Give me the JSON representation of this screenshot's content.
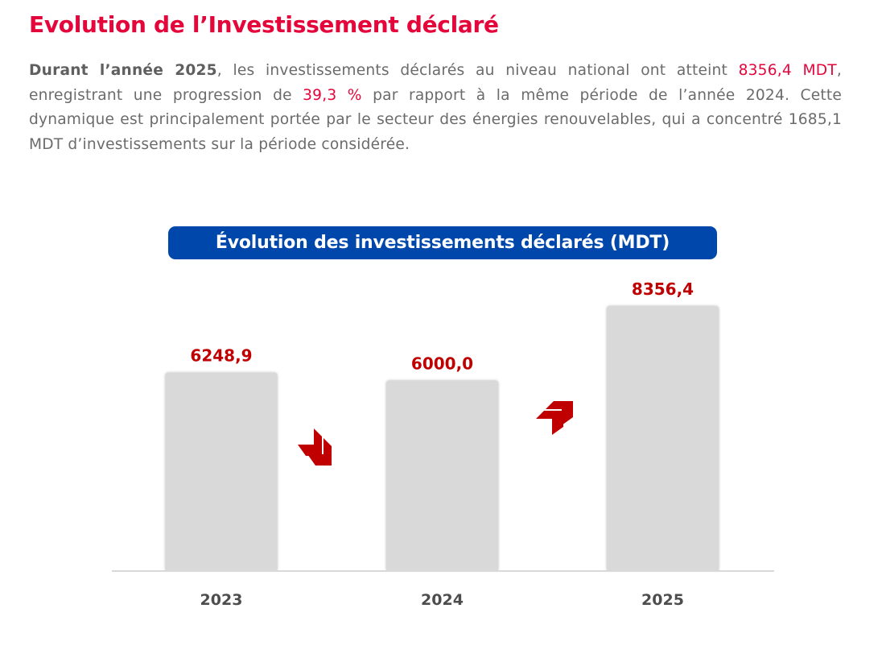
{
  "header": {
    "title": "Evolution de l’Investissement déclaré"
  },
  "paragraph": {
    "lead_bold": "Durant l’année 2025",
    "part1": ", les investissements déclarés au niveau national ont atteint ",
    "highlight_amount": "8356,4 MDT",
    "part2": ", enregistrant une progression de ",
    "highlight_growth": "39,3 %",
    "part3": " par rapport à la même période de l’année 2024. Cette dynamique est principalement portée par le secteur des énergies renouvelables, qui a concentré 1685,1 MDT d’investissements sur la période considérée."
  },
  "colors": {
    "title_red": "#e4053a",
    "chart_title_bg": "#0047ab",
    "bar_fill": "#d9d9d9",
    "value_label": "#c00000",
    "arrow": "#c00000",
    "axis_line": "#d9d9d9",
    "category_label": "#4d4d4d"
  },
  "chart_data": {
    "type": "bar",
    "title": "Évolution des investissements déclarés (MDT)",
    "categories": [
      "2023",
      "2024",
      "2025"
    ],
    "values": [
      6248.9,
      6000.0,
      8356.4
    ],
    "value_labels": [
      "6248,9",
      "6000,0",
      "8356,4"
    ],
    "xlabel": "",
    "ylabel": "",
    "unit": "MDT",
    "grid": false,
    "legend": "none",
    "annotations": [
      {
        "between": [
          "2023",
          "2024"
        ],
        "icon": "double-chevron-down-icon",
        "meaning": "decrease"
      },
      {
        "between": [
          "2024",
          "2025"
        ],
        "icon": "double-chevron-up-icon",
        "meaning": "increase"
      }
    ]
  }
}
